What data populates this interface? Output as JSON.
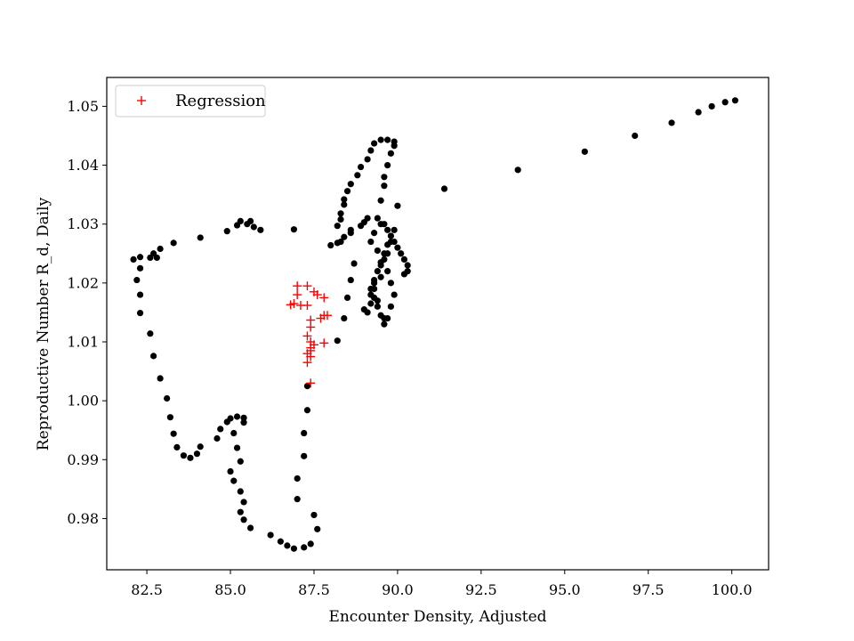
{
  "chart_data": {
    "type": "scatter",
    "title": "",
    "xlabel": "Encounter Density, Adjusted",
    "ylabel": "Reproductive Number R_d, Daily",
    "xlim": [
      81.3,
      101.1
    ],
    "ylim": [
      0.9713,
      1.0549
    ],
    "xticks": [
      82.5,
      85.0,
      87.5,
      90.0,
      92.5,
      95.0,
      97.5,
      100.0
    ],
    "xtick_labels": [
      "82.5",
      "85.0",
      "87.5",
      "90.0",
      "92.5",
      "95.0",
      "97.5",
      "100.0"
    ],
    "yticks": [
      0.98,
      0.99,
      1.0,
      1.01,
      1.02,
      1.03,
      1.04,
      1.05
    ],
    "ytick_labels": [
      "0.98",
      "0.99",
      "1.00",
      "1.01",
      "1.02",
      "1.03",
      "1.04",
      "1.05"
    ],
    "grid": false,
    "legend_placement": "upper-left",
    "series": [
      {
        "name": "",
        "marker": "dot",
        "color": "#000000",
        "points": [
          [
            100.1,
            1.051
          ],
          [
            99.8,
            1.0507
          ],
          [
            99.4,
            1.05
          ],
          [
            99.0,
            1.049
          ],
          [
            98.2,
            1.0472
          ],
          [
            97.1,
            1.045
          ],
          [
            95.6,
            1.0423
          ],
          [
            93.6,
            1.0392
          ],
          [
            91.4,
            1.036
          ],
          [
            90.0,
            1.0331
          ],
          [
            89.9,
            1.029
          ],
          [
            89.8,
            1.027
          ],
          [
            89.7,
            1.025
          ],
          [
            89.5,
            1.023
          ],
          [
            89.3,
            1.02
          ],
          [
            89.2,
            1.018
          ],
          [
            89.1,
            1.015
          ],
          [
            89.5,
            1.03
          ],
          [
            89.3,
            1.0285
          ],
          [
            89.2,
            1.027
          ],
          [
            89.4,
            1.0255
          ],
          [
            89.6,
            1.024
          ],
          [
            89.7,
            1.022
          ],
          [
            89.8,
            1.02
          ],
          [
            89.9,
            1.018
          ],
          [
            89.8,
            1.016
          ],
          [
            89.7,
            1.014
          ],
          [
            89.5,
            1.0145
          ],
          [
            89.4,
            1.016
          ],
          [
            89.3,
            1.0175
          ],
          [
            89.2,
            1.019
          ],
          [
            89.3,
            1.0205
          ],
          [
            89.4,
            1.022
          ],
          [
            89.5,
            1.0235
          ],
          [
            89.6,
            1.025
          ],
          [
            89.7,
            1.0265
          ],
          [
            89.8,
            1.028
          ],
          [
            89.9,
            1.027
          ],
          [
            90.0,
            1.026
          ],
          [
            90.1,
            1.025
          ],
          [
            90.2,
            1.024
          ],
          [
            90.3,
            1.023
          ],
          [
            90.3,
            1.022
          ],
          [
            90.2,
            1.0215
          ],
          [
            89.4,
            1.031
          ],
          [
            89.6,
            1.03
          ],
          [
            89.7,
            1.029
          ],
          [
            89.5,
            1.021
          ],
          [
            89.3,
            1.019
          ],
          [
            89.4,
            1.017
          ],
          [
            89.6,
            1.014
          ],
          [
            89.6,
            1.013
          ],
          [
            89.5,
            1.034
          ],
          [
            89.6,
            1.0365
          ],
          [
            89.6,
            1.038
          ],
          [
            89.7,
            1.04
          ],
          [
            89.8,
            1.042
          ],
          [
            89.9,
            1.0433
          ],
          [
            89.9,
            1.044
          ],
          [
            89.7,
            1.0443
          ],
          [
            89.5,
            1.0443
          ],
          [
            89.3,
            1.0437
          ],
          [
            89.2,
            1.0425
          ],
          [
            89.1,
            1.041
          ],
          [
            88.9,
            1.0397
          ],
          [
            88.8,
            1.0383
          ],
          [
            88.6,
            1.0368
          ],
          [
            88.5,
            1.0356
          ],
          [
            88.4,
            1.0342
          ],
          [
            88.4,
            1.0333
          ],
          [
            88.3,
            1.0318
          ],
          [
            88.3,
            1.0308
          ],
          [
            88.2,
            1.0297
          ],
          [
            88.6,
            1.029
          ],
          [
            88.6,
            1.0285
          ],
          [
            88.9,
            1.0297
          ],
          [
            89.0,
            1.0303
          ],
          [
            89.1,
            1.031
          ],
          [
            88.4,
            1.0278
          ],
          [
            88.3,
            1.027
          ],
          [
            88.2,
            1.0268
          ],
          [
            88.0,
            1.0264
          ],
          [
            86.9,
            1.0291
          ],
          [
            85.9,
            1.029
          ],
          [
            85.7,
            1.0295
          ],
          [
            85.6,
            1.0305
          ],
          [
            85.5,
            1.03
          ],
          [
            85.3,
            1.0305
          ],
          [
            85.2,
            1.0298
          ],
          [
            84.9,
            1.0288
          ],
          [
            84.1,
            1.0277
          ],
          [
            83.3,
            1.0268
          ],
          [
            82.9,
            1.0258
          ],
          [
            82.7,
            1.025
          ],
          [
            82.6,
            1.0243
          ],
          [
            82.8,
            1.0243
          ],
          [
            82.3,
            1.0244
          ],
          [
            82.1,
            1.024
          ],
          [
            82.3,
            1.0225
          ],
          [
            82.2,
            1.0205
          ],
          [
            82.3,
            1.018
          ],
          [
            82.3,
            1.0149
          ],
          [
            82.6,
            1.0114
          ],
          [
            82.7,
            1.0076
          ],
          [
            82.9,
            1.0038
          ],
          [
            83.1,
            1.0004
          ],
          [
            83.2,
            0.9972
          ],
          [
            83.3,
            0.9944
          ],
          [
            83.4,
            0.9921
          ],
          [
            83.6,
            0.9907
          ],
          [
            83.8,
            0.9903
          ],
          [
            84.0,
            0.991
          ],
          [
            84.1,
            0.9922
          ],
          [
            84.6,
            0.9936
          ],
          [
            84.7,
            0.9952
          ],
          [
            84.9,
            0.9964
          ],
          [
            85.0,
            0.997
          ],
          [
            85.2,
            0.9973
          ],
          [
            85.4,
            0.9971
          ],
          [
            85.4,
            0.9963
          ],
          [
            85.1,
            0.9945
          ],
          [
            85.2,
            0.992
          ],
          [
            85.3,
            0.9897
          ],
          [
            85.0,
            0.988
          ],
          [
            85.1,
            0.9864
          ],
          [
            85.3,
            0.9846
          ],
          [
            85.4,
            0.9828
          ],
          [
            85.3,
            0.9811
          ],
          [
            85.4,
            0.9798
          ],
          [
            85.6,
            0.9784
          ],
          [
            86.2,
            0.9772
          ],
          [
            86.5,
            0.9761
          ],
          [
            86.7,
            0.9754
          ],
          [
            86.9,
            0.9749
          ],
          [
            87.2,
            0.9751
          ],
          [
            87.4,
            0.9757
          ],
          [
            87.6,
            0.9782
          ],
          [
            87.5,
            0.9806
          ],
          [
            87.0,
            0.9833
          ],
          [
            87.0,
            0.9868
          ],
          [
            87.2,
            0.9906
          ],
          [
            87.2,
            0.9945
          ],
          [
            87.3,
            0.9984
          ],
          [
            87.3,
            1.0025
          ],
          [
            88.2,
            1.0102
          ],
          [
            88.4,
            1.014
          ],
          [
            88.5,
            1.0175
          ],
          [
            88.6,
            1.0205
          ],
          [
            88.7,
            1.0233
          ],
          [
            89.0,
            1.0155
          ],
          [
            89.2,
            1.0165
          ]
        ]
      },
      {
        "name": "Regression",
        "marker": "plus",
        "color": "#ff0000",
        "points": [
          [
            87.0,
            1.0195
          ],
          [
            87.3,
            1.0195
          ],
          [
            87.5,
            1.0185
          ],
          [
            87.6,
            1.018
          ],
          [
            87.8,
            1.0175
          ],
          [
            87.0,
            1.018
          ],
          [
            86.9,
            1.0165
          ],
          [
            87.1,
            1.0162
          ],
          [
            87.3,
            1.0162
          ],
          [
            86.8,
            1.0163
          ],
          [
            87.4,
            1.0137
          ],
          [
            87.4,
            1.0125
          ],
          [
            87.3,
            1.011
          ],
          [
            87.4,
            1.01
          ],
          [
            87.5,
            1.0095
          ],
          [
            87.4,
            1.009
          ],
          [
            87.4,
            1.0085
          ],
          [
            87.3,
            1.008
          ],
          [
            87.4,
            1.0075
          ],
          [
            87.3,
            1.0065
          ],
          [
            87.4,
            1.003
          ],
          [
            87.8,
            1.0145
          ],
          [
            87.9,
            1.0145
          ],
          [
            87.7,
            1.014
          ],
          [
            87.8,
            1.0098
          ]
        ]
      }
    ]
  }
}
